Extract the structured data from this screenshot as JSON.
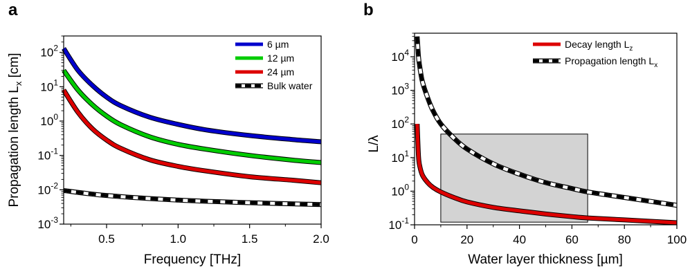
{
  "chart_data": [
    {
      "panel": "a",
      "type": "line",
      "xlabel": "Frequency [THz]",
      "ylabel_main": "Propagation length L",
      "ylabel_sub": "x",
      "ylabel_unit": " [cm]",
      "yscale": "log",
      "xlim": [
        0.2,
        2.0
      ],
      "ylim": [
        0.001,
        300
      ],
      "xticks": [
        0.5,
        1.0,
        1.5,
        2.0
      ],
      "xtick_labels": [
        "0.5",
        "1.0",
        "1.5",
        "2.0"
      ],
      "yticks": [
        0.001,
        0.01,
        0.1,
        1,
        10,
        100
      ],
      "ytick_base": [
        "10",
        "10",
        "10",
        "10",
        "10",
        "10"
      ],
      "ytick_exp": [
        "-3",
        "-2",
        "-1",
        "0",
        "1",
        "2"
      ],
      "legend_position": "top-right",
      "series": [
        {
          "name": "6 µm",
          "color": "#0000cc",
          "style": "solid",
          "x": [
            0.2,
            0.3,
            0.4,
            0.5,
            0.6,
            0.8,
            1.0,
            1.2,
            1.5,
            1.8,
            2.0
          ],
          "y": [
            130,
            30,
            11,
            5.0,
            2.8,
            1.3,
            0.8,
            0.55,
            0.38,
            0.29,
            0.25
          ]
        },
        {
          "name": "12 µm",
          "color": "#00cc00",
          "style": "solid",
          "x": [
            0.2,
            0.3,
            0.4,
            0.5,
            0.6,
            0.8,
            1.0,
            1.2,
            1.5,
            1.8,
            2.0
          ],
          "y": [
            30,
            8.0,
            3.0,
            1.4,
            0.78,
            0.35,
            0.21,
            0.15,
            0.1,
            0.073,
            0.062
          ]
        },
        {
          "name": "24 µm",
          "color": "#dd0000",
          "style": "solid",
          "x": [
            0.2,
            0.3,
            0.4,
            0.5,
            0.6,
            0.8,
            1.0,
            1.2,
            1.5,
            1.8,
            2.0
          ],
          "y": [
            8.0,
            1.8,
            0.6,
            0.28,
            0.16,
            0.075,
            0.048,
            0.035,
            0.024,
            0.019,
            0.016
          ]
        },
        {
          "name": "Bulk water",
          "color": "#000000",
          "style": "dashed",
          "x": [
            0.2,
            0.5,
            1.0,
            1.5,
            2.0
          ],
          "y": [
            0.0095,
            0.0068,
            0.005,
            0.0042,
            0.0037
          ]
        }
      ]
    },
    {
      "panel": "b",
      "type": "line",
      "xlabel": "Water layer thickness [µm]",
      "ylabel_main": "L/λ",
      "yscale": "log",
      "xlim": [
        0,
        100
      ],
      "ylim": [
        0.1,
        50000
      ],
      "xticks": [
        0,
        20,
        40,
        60,
        80,
        100
      ],
      "xtick_labels": [
        "0",
        "20",
        "40",
        "60",
        "80",
        "100"
      ],
      "yticks": [
        0.1,
        1,
        10,
        100,
        1000,
        10000
      ],
      "ytick_base": [
        "10",
        "10",
        "10",
        "10",
        "10",
        "10"
      ],
      "ytick_exp": [
        "-1",
        "0",
        "1",
        "2",
        "3",
        "4"
      ],
      "legend_position": "top-right",
      "shaded_region": {
        "x": [
          10,
          66
        ],
        "y": [
          0.12,
          50
        ],
        "color": "#d3d3d3"
      },
      "series": [
        {
          "name_main": "Decay length L",
          "name_sub": "z",
          "color": "#dd0000",
          "style": "solid",
          "x": [
            1,
            1.5,
            2,
            3,
            5,
            7,
            10,
            15,
            20,
            30,
            40,
            50,
            60,
            66,
            80,
            100
          ],
          "y": [
            100,
            11,
            5.5,
            3.0,
            1.8,
            1.3,
            0.95,
            0.65,
            0.48,
            0.33,
            0.26,
            0.21,
            0.175,
            0.16,
            0.14,
            0.115
          ]
        },
        {
          "name_main": "Propagation length L",
          "name_sub": "x",
          "color": "#000000",
          "style": "dashed",
          "x": [
            1,
            1.5,
            2,
            3,
            5,
            7,
            10,
            15,
            20,
            30,
            40,
            50,
            60,
            66,
            80,
            100
          ],
          "y": [
            40000,
            10000,
            5000,
            1800,
            600,
            250,
            100,
            38,
            18,
            6.5,
            3.2,
            1.8,
            1.2,
            0.95,
            0.65,
            0.38
          ]
        }
      ]
    }
  ]
}
